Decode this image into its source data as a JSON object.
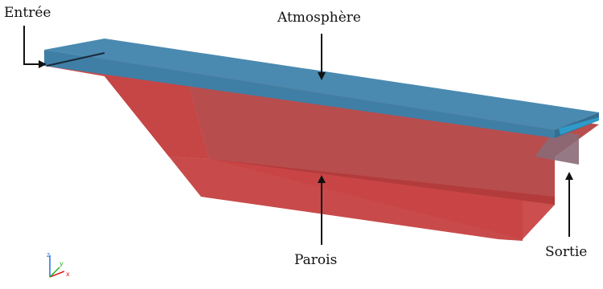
{
  "labels": {
    "inlet": "Entrée",
    "atmosphere": "Atmosphère",
    "walls": "Parois",
    "outlet": "Sortie"
  },
  "colors": {
    "atmosphere": "#3f7fa6",
    "walls": "#c63f3f",
    "walls_dark": "#b23838",
    "arrow": "#111111",
    "axis_x": "#e02020",
    "axis_y": "#20b020",
    "axis_z": "#2070e0"
  },
  "axes_triad": {
    "x": "x",
    "y": "y",
    "z": "z"
  }
}
